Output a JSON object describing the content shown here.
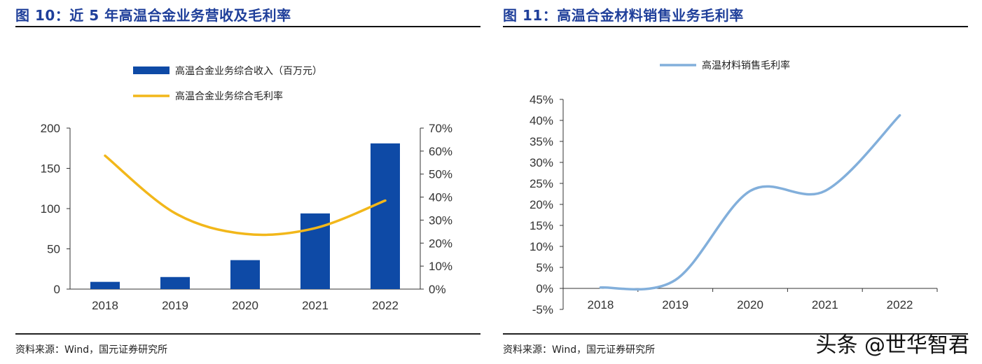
{
  "left_panel": {
    "title": "图 10：近 5 年高温合金业务营收及毛利率",
    "source": "资料来源：Wind，国元证券研究所"
  },
  "right_panel": {
    "title": "图 11：高温合金材料销售业务毛利率",
    "source": "资料来源：Wind，国元证券研究所"
  },
  "watermark": "头条 @世华智君",
  "colors": {
    "bar": "#0e4aa6",
    "gross_line": "#f2b71a",
    "right_line": "#82afdb",
    "title": "#1f3f9a"
  },
  "chart_data": [
    {
      "type": "bar",
      "title": "图 10：近 5 年高温合金业务营收及毛利率",
      "categories": [
        "2018",
        "2019",
        "2020",
        "2021",
        "2022"
      ],
      "series": [
        {
          "name": "高温合金业务综合收入（百万元）",
          "type": "bar",
          "axis": "left",
          "values": [
            9,
            15,
            36,
            94,
            181
          ]
        },
        {
          "name": "高温合金业务综合毛利率",
          "type": "line",
          "axis": "right",
          "values": [
            0.58,
            0.33,
            0.24,
            0.265,
            0.385
          ]
        }
      ],
      "left_axis": {
        "ylim": [
          0,
          200
        ],
        "ticks": [
          "0",
          "50",
          "100",
          "150",
          "200"
        ],
        "tick_values": [
          0,
          50,
          100,
          150,
          200
        ]
      },
      "right_axis": {
        "ylim": [
          0,
          0.7
        ],
        "ticks": [
          "0%",
          "10%",
          "20%",
          "30%",
          "40%",
          "50%",
          "60%",
          "70%"
        ],
        "tick_values": [
          0,
          0.1,
          0.2,
          0.3,
          0.4,
          0.5,
          0.6,
          0.7
        ]
      },
      "legend": "top-center"
    },
    {
      "type": "line",
      "title": "图 11：高温合金材料销售业务毛利率",
      "categories": [
        "2018",
        "2019",
        "2020",
        "2021",
        "2022"
      ],
      "series": [
        {
          "name": "高温材料销售毛利率",
          "values": [
            0.002,
            0.02,
            0.232,
            0.232,
            0.412
          ]
        }
      ],
      "ylim": [
        -0.05,
        0.45
      ],
      "ticks": [
        "-5%",
        "0%",
        "5%",
        "10%",
        "15%",
        "20%",
        "25%",
        "30%",
        "35%",
        "40%",
        "45%"
      ],
      "tick_values": [
        -0.05,
        0,
        0.05,
        0.1,
        0.15,
        0.2,
        0.25,
        0.3,
        0.35,
        0.4,
        0.45
      ],
      "legend": "top-center"
    }
  ]
}
